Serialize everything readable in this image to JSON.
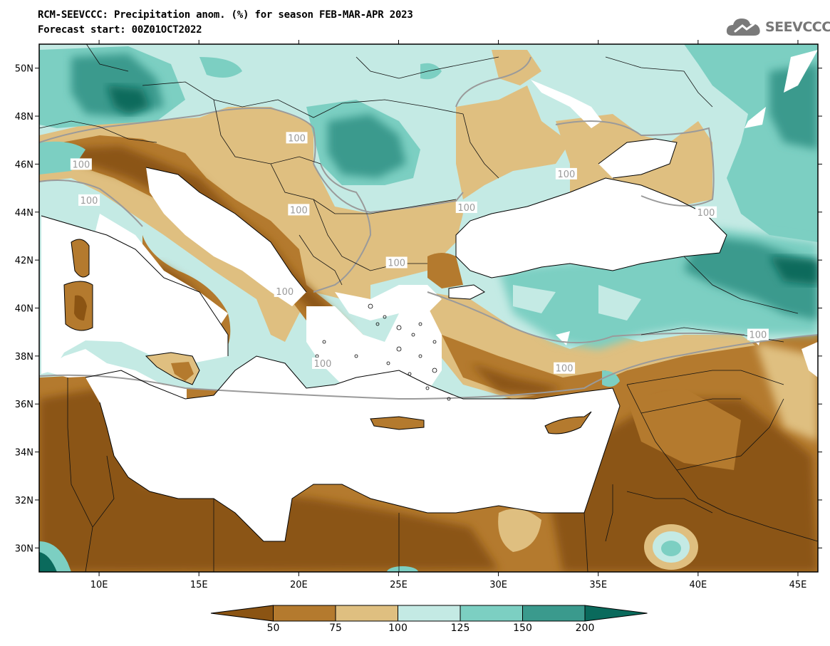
{
  "header": {
    "title_line1": "RCM-SEEVCCC: Precipitation anom. (%) for season FEB-MAR-APR 2023",
    "title_line2": "Forecast start: 00Z01OCT2022"
  },
  "logo": {
    "text": "SEEVCCC",
    "icon": "cloud-icon"
  },
  "map": {
    "lon_range": [
      7,
      46
    ],
    "lat_range": [
      29,
      51
    ],
    "lon_ticks": [
      "10E",
      "15E",
      "20E",
      "25E",
      "30E",
      "35E",
      "40E",
      "45E"
    ],
    "lat_ticks": [
      "50N",
      "48N",
      "46N",
      "44N",
      "42N",
      "40N",
      "38N",
      "36N",
      "34N",
      "32N",
      "30N"
    ],
    "contour_label": "100",
    "contour_labels": [
      {
        "text": "100",
        "lon": 19.9,
        "lat": 47.1
      },
      {
        "text": "100",
        "lon": 9.1,
        "lat": 46.0
      },
      {
        "text": "100",
        "lon": 9.5,
        "lat": 44.5
      },
      {
        "text": "100",
        "lon": 20.0,
        "lat": 44.1
      },
      {
        "text": "100",
        "lon": 28.4,
        "lat": 44.2
      },
      {
        "text": "100",
        "lon": 24.9,
        "lat": 41.9
      },
      {
        "text": "100",
        "lon": 33.4,
        "lat": 45.6
      },
      {
        "text": "100",
        "lon": 40.4,
        "lat": 44.0
      },
      {
        "text": "100",
        "lon": 43.0,
        "lat": 38.9
      },
      {
        "text": "100",
        "lon": 33.3,
        "lat": 37.5
      },
      {
        "text": "100",
        "lon": 19.3,
        "lat": 40.7
      },
      {
        "text": "100",
        "lon": 21.2,
        "lat": 37.7
      }
    ]
  },
  "colorbar": {
    "labels": [
      "50",
      "75",
      "100",
      "125",
      "150",
      "200"
    ],
    "colors": [
      "#8b5413",
      "#b47a2e",
      "#dfbf80",
      "#c4eae4",
      "#7ccfc2",
      "#3a9a8d",
      "#0a6a5c"
    ]
  },
  "palette": {
    "very_dry": "#8b5413",
    "dry": "#b47a2e",
    "slightly_dry": "#dfbf80",
    "normal_wet": "#c4eae4",
    "wet": "#7ccfc2",
    "very_wet": "#3a9a8d",
    "extreme_wet": "#0a6a5c",
    "sea": "#ffffff"
  }
}
